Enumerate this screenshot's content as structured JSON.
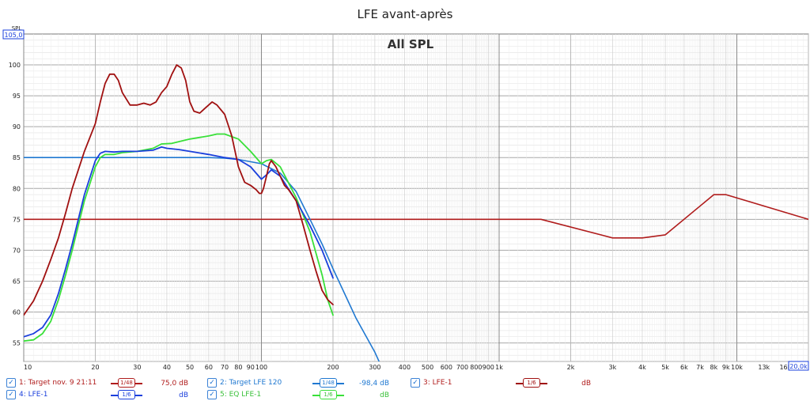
{
  "title": "LFE avant-après",
  "subtitle": "All SPL",
  "y_axis_unit": "SPL",
  "y_axis_max_box": "105,0",
  "x_axis_max_box": "20,0k",
  "colors": {
    "target1": "#b01c1c",
    "target2": "#1f78d1",
    "lfe_raw": "#a01010",
    "lfe_measured": "#1a3fdc",
    "eq_lfe": "#39e039"
  },
  "chart_data": {
    "type": "line",
    "x_scale": "log",
    "xlim": [
      10,
      20000
    ],
    "ylim": [
      52,
      105
    ],
    "x_ticks": [
      {
        "v": 10,
        "label": "10"
      },
      {
        "v": 20,
        "label": "20"
      },
      {
        "v": 30,
        "label": "30"
      },
      {
        "v": 40,
        "label": "40"
      },
      {
        "v": 50,
        "label": "50"
      },
      {
        "v": 60,
        "label": "60"
      },
      {
        "v": 70,
        "label": "70"
      },
      {
        "v": 80,
        "label": "80"
      },
      {
        "v": 90,
        "label": "90"
      },
      {
        "v": 100,
        "label": "100"
      },
      {
        "v": 200,
        "label": "200"
      },
      {
        "v": 300,
        "label": "300"
      },
      {
        "v": 400,
        "label": "400"
      },
      {
        "v": 500,
        "label": "500"
      },
      {
        "v": 600,
        "label": "600"
      },
      {
        "v": 700,
        "label": "700"
      },
      {
        "v": 800,
        "label": "800"
      },
      {
        "v": 900,
        "label": "900"
      },
      {
        "v": 1000,
        "label": "1k"
      },
      {
        "v": 2000,
        "label": "2k"
      },
      {
        "v": 3000,
        "label": "3k"
      },
      {
        "v": 4000,
        "label": "4k"
      },
      {
        "v": 5000,
        "label": "5k"
      },
      {
        "v": 6000,
        "label": "6k"
      },
      {
        "v": 7000,
        "label": "7k"
      },
      {
        "v": 8000,
        "label": "8k"
      },
      {
        "v": 9000,
        "label": "9k"
      },
      {
        "v": 10000,
        "label": "10k"
      },
      {
        "v": 13000,
        "label": "13k"
      },
      {
        "v": 16000,
        "label": "16k"
      }
    ],
    "y_ticks": [
      55,
      60,
      65,
      70,
      75,
      80,
      85,
      90,
      95,
      100
    ],
    "grid": true,
    "series": [
      {
        "name": "1: Target nov. 9 21:11",
        "key": "target1",
        "points": [
          [
            10,
            75
          ],
          [
            1500,
            75
          ],
          [
            3000,
            72
          ],
          [
            4000,
            72
          ],
          [
            5000,
            72.5
          ],
          [
            8000,
            79
          ],
          [
            9000,
            79
          ],
          [
            20000,
            75
          ]
        ]
      },
      {
        "name": "2: Target LFE 120",
        "key": "target2",
        "points": [
          [
            10,
            85
          ],
          [
            60,
            85
          ],
          [
            70,
            84.9
          ],
          [
            80,
            84.7
          ],
          [
            100,
            84
          ],
          [
            120,
            82.5
          ],
          [
            140,
            79.5
          ],
          [
            160,
            75
          ],
          [
            180,
            71
          ],
          [
            200,
            67
          ],
          [
            250,
            59
          ],
          [
            300,
            53.5
          ],
          [
            330,
            50
          ]
        ]
      },
      {
        "name": "3: LFE-1",
        "key": "lfe_raw",
        "points": [
          [
            10,
            59.5
          ],
          [
            11,
            61.8
          ],
          [
            12,
            65
          ],
          [
            13,
            68.5
          ],
          [
            14,
            72
          ],
          [
            15,
            76
          ],
          [
            16,
            80
          ],
          [
            18,
            86
          ],
          [
            20,
            90.5
          ],
          [
            21,
            94
          ],
          [
            22,
            97
          ],
          [
            23,
            98.5
          ],
          [
            24,
            98.5
          ],
          [
            25,
            97.5
          ],
          [
            26,
            95.5
          ],
          [
            28,
            93.5
          ],
          [
            30,
            93.5
          ],
          [
            32,
            93.8
          ],
          [
            34,
            93.5
          ],
          [
            36,
            94
          ],
          [
            38,
            95.5
          ],
          [
            40,
            96.5
          ],
          [
            42,
            98.5
          ],
          [
            44,
            100
          ],
          [
            46,
            99.5
          ],
          [
            48,
            97.5
          ],
          [
            50,
            94
          ],
          [
            52,
            92.5
          ],
          [
            55,
            92.2
          ],
          [
            58,
            93
          ],
          [
            62,
            94
          ],
          [
            65,
            93.5
          ],
          [
            70,
            92
          ],
          [
            75,
            88.5
          ],
          [
            80,
            83.5
          ],
          [
            85,
            81
          ],
          [
            90,
            80.5
          ],
          [
            95,
            79.8
          ],
          [
            98,
            79.2
          ],
          [
            100,
            79.2
          ],
          [
            102,
            80
          ],
          [
            105,
            82
          ],
          [
            108,
            84
          ],
          [
            110,
            84.5
          ],
          [
            115,
            83.5
          ],
          [
            120,
            82
          ],
          [
            125,
            80.5
          ],
          [
            130,
            79.8
          ],
          [
            140,
            78
          ],
          [
            150,
            74
          ],
          [
            160,
            70
          ],
          [
            170,
            66.5
          ],
          [
            180,
            63.5
          ],
          [
            190,
            62
          ],
          [
            200,
            61.2
          ]
        ]
      },
      {
        "name": "4: LFE-1",
        "key": "lfe_measured",
        "points": [
          [
            10,
            56
          ],
          [
            11,
            56.5
          ],
          [
            12,
            57.5
          ],
          [
            13,
            59.5
          ],
          [
            14,
            63
          ],
          [
            15,
            67
          ],
          [
            16,
            71
          ],
          [
            18,
            79
          ],
          [
            20,
            84.5
          ],
          [
            21,
            85.7
          ],
          [
            22,
            86
          ],
          [
            24,
            85.9
          ],
          [
            26,
            86
          ],
          [
            30,
            86
          ],
          [
            35,
            86.2
          ],
          [
            38,
            86.7
          ],
          [
            40,
            86.5
          ],
          [
            45,
            86.3
          ],
          [
            50,
            86
          ],
          [
            60,
            85.5
          ],
          [
            70,
            85
          ],
          [
            80,
            84.7
          ],
          [
            90,
            83.5
          ],
          [
            100,
            81.5
          ],
          [
            105,
            82.2
          ],
          [
            110,
            83
          ],
          [
            120,
            82
          ],
          [
            140,
            78
          ],
          [
            160,
            74
          ],
          [
            180,
            70
          ],
          [
            200,
            65.5
          ]
        ]
      },
      {
        "name": "5: EQ LFE-1",
        "key": "eq_lfe",
        "points": [
          [
            10,
            55.3
          ],
          [
            11,
            55.5
          ],
          [
            12,
            56.5
          ],
          [
            13,
            58.5
          ],
          [
            14,
            62
          ],
          [
            15,
            66
          ],
          [
            16,
            70
          ],
          [
            18,
            78
          ],
          [
            20,
            83.5
          ],
          [
            21,
            85
          ],
          [
            22,
            85.5
          ],
          [
            24,
            85.5
          ],
          [
            26,
            85.8
          ],
          [
            30,
            86
          ],
          [
            35,
            86.5
          ],
          [
            38,
            87.2
          ],
          [
            42,
            87.3
          ],
          [
            50,
            88
          ],
          [
            60,
            88.5
          ],
          [
            65,
            88.8
          ],
          [
            70,
            88.8
          ],
          [
            80,
            88
          ],
          [
            90,
            86
          ],
          [
            100,
            84
          ],
          [
            105,
            84.5
          ],
          [
            110,
            84.7
          ],
          [
            120,
            83.5
          ],
          [
            140,
            78.5
          ],
          [
            160,
            73
          ],
          [
            180,
            66
          ],
          [
            190,
            62
          ],
          [
            200,
            59.5
          ]
        ]
      }
    ]
  },
  "legend": [
    {
      "id": "l1",
      "name": "1: Target nov. 9 21:11",
      "smoothing_num": "1",
      "smoothing_den": "48",
      "value": "75,0 dB",
      "key": "target1",
      "text_color": "#b01c1c"
    },
    {
      "id": "l2",
      "name": "2: Target LFE 120",
      "smoothing_num": "1",
      "smoothing_den": "48",
      "value": "-98,4 dB",
      "key": "target2",
      "text_color": "#1f78d1"
    },
    {
      "id": "l3",
      "name": "3: LFE-1",
      "smoothing_num": "1",
      "smoothing_den": "6",
      "value": "dB",
      "key": "lfe_raw",
      "text_color": "#b01c1c"
    },
    {
      "id": "l4",
      "name": "4: LFE-1",
      "smoothing_num": "1",
      "smoothing_den": "6",
      "value": "dB",
      "key": "lfe_measured",
      "text_color": "#1a3fdc"
    },
    {
      "id": "l5",
      "name": "5: EQ LFE-1",
      "smoothing_num": "1",
      "smoothing_den": "6",
      "value": "dB",
      "key": "eq_lfe",
      "text_color": "#39c039"
    }
  ]
}
